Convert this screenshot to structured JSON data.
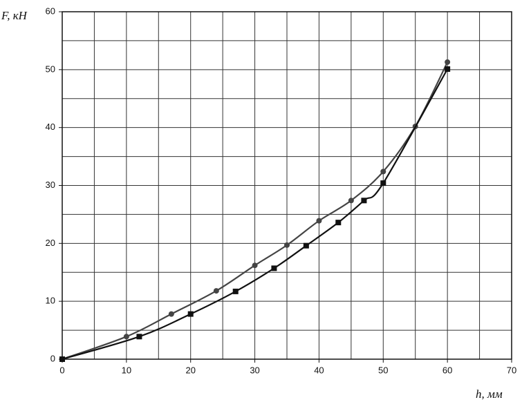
{
  "chart_data": {
    "type": "line",
    "x_label": "h, мм",
    "y_label": "F, кН",
    "xlim": [
      0,
      70
    ],
    "xticks": [
      0,
      10,
      20,
      30,
      40,
      50,
      60,
      70
    ],
    "ylim": [
      0,
      60
    ],
    "yticks": [
      0,
      10,
      20,
      30,
      40,
      50,
      60
    ],
    "x_minor_ticks": [
      5,
      15,
      25,
      35,
      45,
      55,
      65
    ],
    "y_minor_ticks": [
      5,
      15,
      25,
      35,
      45,
      55
    ],
    "grid": true,
    "series": [
      {
        "marker": "circle",
        "color": "#444444",
        "x": [
          0,
          10,
          17,
          24,
          30,
          35,
          40,
          45,
          50,
          55,
          60
        ],
        "values": [
          0,
          3.9,
          7.8,
          11.8,
          16.2,
          19.7,
          23.9,
          27.4,
          32.4,
          40.2,
          51.3
        ]
      },
      {
        "marker": "square",
        "color": "#111111",
        "x": [
          0,
          12,
          20,
          27,
          33,
          38,
          43,
          47,
          50,
          60
        ],
        "values": [
          0,
          3.9,
          7.8,
          11.7,
          15.7,
          19.6,
          23.6,
          27.4,
          30.4,
          50.1
        ]
      }
    ]
  }
}
